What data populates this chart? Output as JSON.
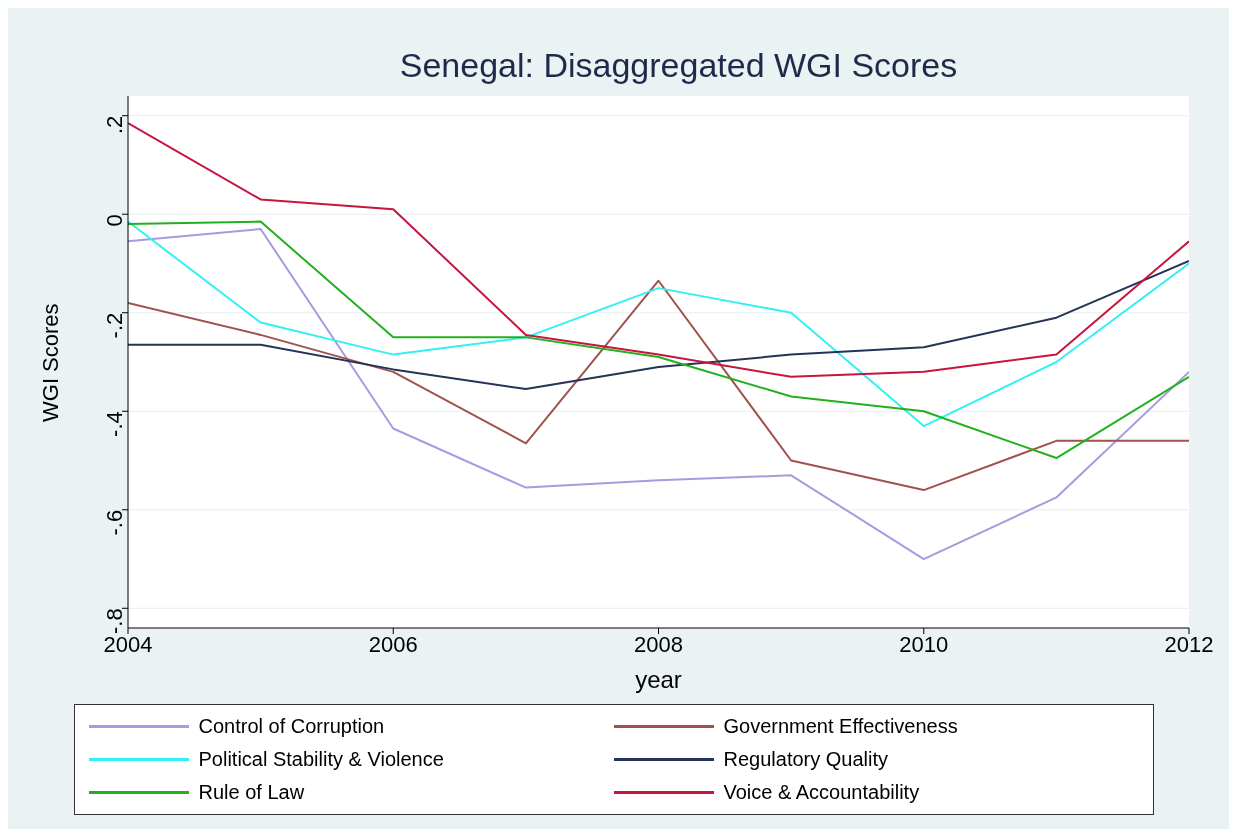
{
  "chart_data": {
    "type": "line",
    "title": "Senegal: Disaggregated WGI Scores",
    "xlabel": "year",
    "ylabel": "WGI Scores",
    "x": [
      2004,
      2005,
      2006,
      2007,
      2008,
      2009,
      2010,
      2011,
      2012
    ],
    "series": [
      {
        "name": "Control of Corruption",
        "color": "#a49ce0",
        "values": [
          -0.055,
          -0.03,
          -0.435,
          -0.555,
          -0.54,
          -0.53,
          -0.7,
          -0.575,
          -0.32
        ]
      },
      {
        "name": "Government Effectiveness",
        "color": "#a0524d",
        "values": [
          -0.18,
          -0.245,
          -0.32,
          -0.465,
          -0.135,
          -0.5,
          -0.56,
          -0.46,
          -0.46
        ]
      },
      {
        "name": "Political Stability & Violence",
        "color": "#33f0f5",
        "values": [
          -0.015,
          -0.22,
          -0.285,
          -0.25,
          -0.15,
          -0.2,
          -0.43,
          -0.3,
          -0.1
        ]
      },
      {
        "name": "Regulatory Quality",
        "color": "#253356",
        "values": [
          -0.265,
          -0.265,
          -0.315,
          -0.355,
          -0.31,
          -0.285,
          -0.27,
          -0.21,
          -0.095
        ]
      },
      {
        "name": "Rule of Law",
        "color": "#22b01c",
        "values": [
          -0.02,
          -0.015,
          -0.25,
          -0.25,
          -0.29,
          -0.37,
          -0.4,
          -0.495,
          -0.33
        ]
      },
      {
        "name": "Voice & Accountability",
        "color": "#c8143f",
        "values": [
          0.185,
          0.03,
          0.01,
          -0.245,
          -0.285,
          -0.33,
          -0.32,
          -0.285,
          -0.055
        ]
      }
    ],
    "xlim": [
      2004,
      2012
    ],
    "xticks": [
      2004,
      2006,
      2008,
      2010,
      2012
    ],
    "ylim": [
      -0.84,
      0.24
    ],
    "yticks": [
      {
        "value": 0.2,
        "label": ".2"
      },
      {
        "value": 0,
        "label": "0"
      },
      {
        "value": -0.2,
        "label": "-.2"
      },
      {
        "value": -0.4,
        "label": "-.4"
      },
      {
        "value": -0.6,
        "label": "-.6"
      },
      {
        "value": -0.8,
        "label": "-.8"
      }
    ],
    "grid": "y",
    "legend": "bottom",
    "marker": "none",
    "line_style": "solid"
  }
}
